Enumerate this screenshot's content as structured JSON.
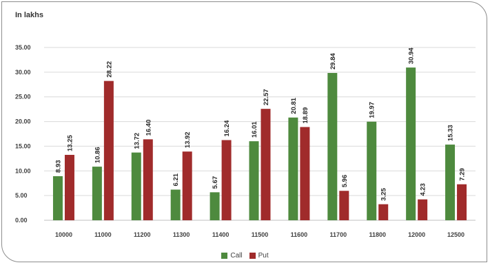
{
  "chart_data": {
    "type": "bar",
    "ylabel": "In lakhs",
    "categories": [
      "10000",
      "11000",
      "11200",
      "11300",
      "11400",
      "11500",
      "11600",
      "11700",
      "11800",
      "12000",
      "12500"
    ],
    "series": [
      {
        "name": "Call",
        "color": "#4e8a3e",
        "values": [
          8.93,
          10.86,
          13.72,
          6.21,
          5.67,
          16.01,
          20.81,
          29.84,
          19.97,
          30.94,
          15.33
        ]
      },
      {
        "name": "Put",
        "color": "#a02b2b",
        "values": [
          13.25,
          28.22,
          16.4,
          13.92,
          16.24,
          22.57,
          18.89,
          5.96,
          3.25,
          4.23,
          7.29
        ]
      }
    ],
    "ylim": [
      0,
      35
    ],
    "yticks": [
      "0.00",
      "5.00",
      "10.00",
      "15.00",
      "20.00",
      "25.00",
      "30.00",
      "35.00"
    ],
    "grid": true,
    "legend_position": "bottom"
  }
}
